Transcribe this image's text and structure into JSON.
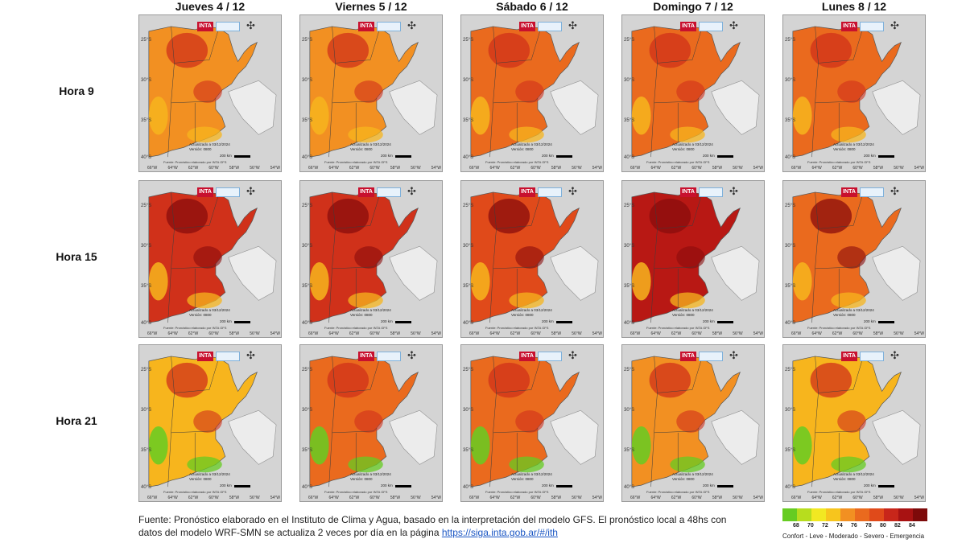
{
  "days": [
    "Jueves 4 / 12",
    "Viernes 5 / 12",
    "Sábado 6 / 12",
    "Domingo 7 / 12",
    "Lunes 8 / 12"
  ],
  "hours": [
    "Hora 9",
    "Hora 15",
    "Hora 21"
  ],
  "panel": {
    "logo": "INTA",
    "compass": "✣",
    "latitudes": [
      "25°S",
      "30°S",
      "35°S",
      "40°S"
    ],
    "longitudes": [
      "66°W",
      "64°W",
      "62°W",
      "60°W",
      "58°W",
      "56°W",
      "54°W"
    ],
    "note_line1": "Actualizado a 03/12/2024",
    "note_line2": "Versión: 0800",
    "scale": "200 km",
    "footer": "Fuente: Pronóstico elaborado por INTA GFS"
  },
  "levels": {
    "confort": "#66cc22",
    "leve_a": "#f2e822",
    "leve_b": "#f7b51d",
    "moderado_a": "#f29022",
    "moderado_b": "#ea6a1e",
    "severo_a": "#e04a1a",
    "severo_b": "#d0311a",
    "emergencia_a": "#b81814",
    "emergencia_b": "#8a0c0c"
  },
  "panels": [
    [
      "moderado_a",
      "moderado_a",
      "moderado_b",
      "moderado_b",
      "moderado_b"
    ],
    [
      "severo_b",
      "severo_b",
      "severo_a",
      "emergencia_a",
      "moderado_b"
    ],
    [
      "leve_b",
      "moderado_b",
      "moderado_b",
      "moderado_a",
      "leve_b"
    ]
  ],
  "source": {
    "text": "Fuente: Pronóstico elaborado en el Instituto de Clima y Agua, basado en la interpretación del modelo GFS. El pronóstico local a 48hs con datos del modelo WRF-SMN se actualiza 2 veces por día en la página ",
    "link": "https://siga.inta.gob.ar/#/ith"
  },
  "legend": {
    "colors": [
      "#66cc22",
      "#b7dd1e",
      "#f2e822",
      "#f7c51d",
      "#f29022",
      "#ea6a1e",
      "#e04a1a",
      "#c8261a",
      "#a81212",
      "#7d0a0a"
    ],
    "ticks": [
      "68",
      "70",
      "72",
      "74",
      "76",
      "78",
      "80",
      "82",
      "84"
    ],
    "categories": "Confort - Leve - Moderado - Severo - Emergencia"
  }
}
